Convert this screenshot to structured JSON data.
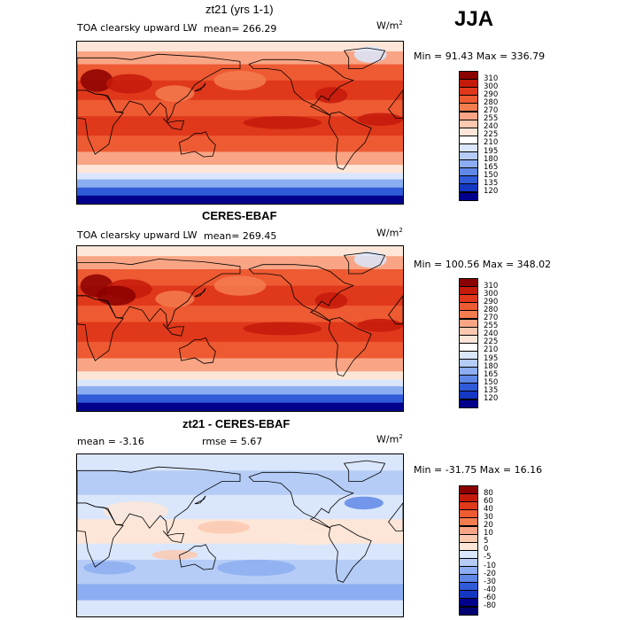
{
  "season": "JJA",
  "units_base": "W/m",
  "units_exp": "2",
  "panels": [
    {
      "title": "zt21 (yrs 1-1)",
      "variable": "TOA clearsky upward LW",
      "stat": "mean= 266.29",
      "minmax": "Min =  91.43 Max = 336.79"
    },
    {
      "title": "CERES-EBAF",
      "variable": "TOA clearsky upward LW",
      "stat": "mean= 269.45",
      "minmax": "Min = 100.56 Max = 348.02"
    },
    {
      "title": "zt21 - CERES-EBAF",
      "stat_mean": "mean =  -3.16",
      "stat_rmse": "rmse =   5.67",
      "minmax": "Min = -31.75 Max =  16.16"
    }
  ],
  "chart_data": [
    {
      "type": "heatmap",
      "title": "zt21 (yrs 1-1)",
      "subtitle": "TOA clearsky upward LW",
      "units": "W/m2",
      "mean": 266.29,
      "min": 91.43,
      "max": 336.79,
      "levels": [
        "310",
        "300",
        "290",
        "280",
        "270",
        "255",
        "240",
        "225",
        "210",
        "195",
        "180",
        "165",
        "150",
        "135",
        "120"
      ],
      "colors": [
        "#8b0000",
        "#c41a0a",
        "#e0381b",
        "#ee5a32",
        "#f47d50",
        "#f9a585",
        "#fcc8b0",
        "#fde6d8",
        "#ffffff",
        "#dae6fb",
        "#b5ccf6",
        "#8cadf1",
        "#5f87e6",
        "#2f5ad8",
        "#1438c4",
        "#00008b"
      ]
    },
    {
      "type": "heatmap",
      "title": "CERES-EBAF",
      "subtitle": "TOA clearsky upward LW",
      "units": "W/m2",
      "mean": 269.45,
      "min": 100.56,
      "max": 348.02,
      "levels": [
        "310",
        "300",
        "290",
        "280",
        "270",
        "255",
        "240",
        "225",
        "210",
        "195",
        "180",
        "165",
        "150",
        "135",
        "120"
      ],
      "colors": [
        "#8b0000",
        "#c41a0a",
        "#e0381b",
        "#ee5a32",
        "#f47d50",
        "#f9a585",
        "#fcc8b0",
        "#fde6d8",
        "#ffffff",
        "#dae6fb",
        "#b5ccf6",
        "#8cadf1",
        "#5f87e6",
        "#2f5ad8",
        "#1438c4",
        "#00008b"
      ]
    },
    {
      "type": "heatmap",
      "title": "zt21 - CERES-EBAF",
      "units": "W/m2",
      "mean": -3.16,
      "rmse": 5.67,
      "min": -31.75,
      "max": 16.16,
      "levels": [
        "80",
        "60",
        "40",
        "30",
        "20",
        "10",
        "5",
        "0",
        "-5",
        "-10",
        "-20",
        "-30",
        "-40",
        "-60",
        "-80"
      ],
      "colors": [
        "#8b0000",
        "#c41a0a",
        "#e0381b",
        "#ee5a32",
        "#f47d50",
        "#f9a585",
        "#fcc8b0",
        "#fde6d8",
        "#dae6fb",
        "#b5ccf6",
        "#8cadf1",
        "#5f87e6",
        "#2f5ad8",
        "#1438c4",
        "#00008b",
        "#000070"
      ]
    }
  ]
}
